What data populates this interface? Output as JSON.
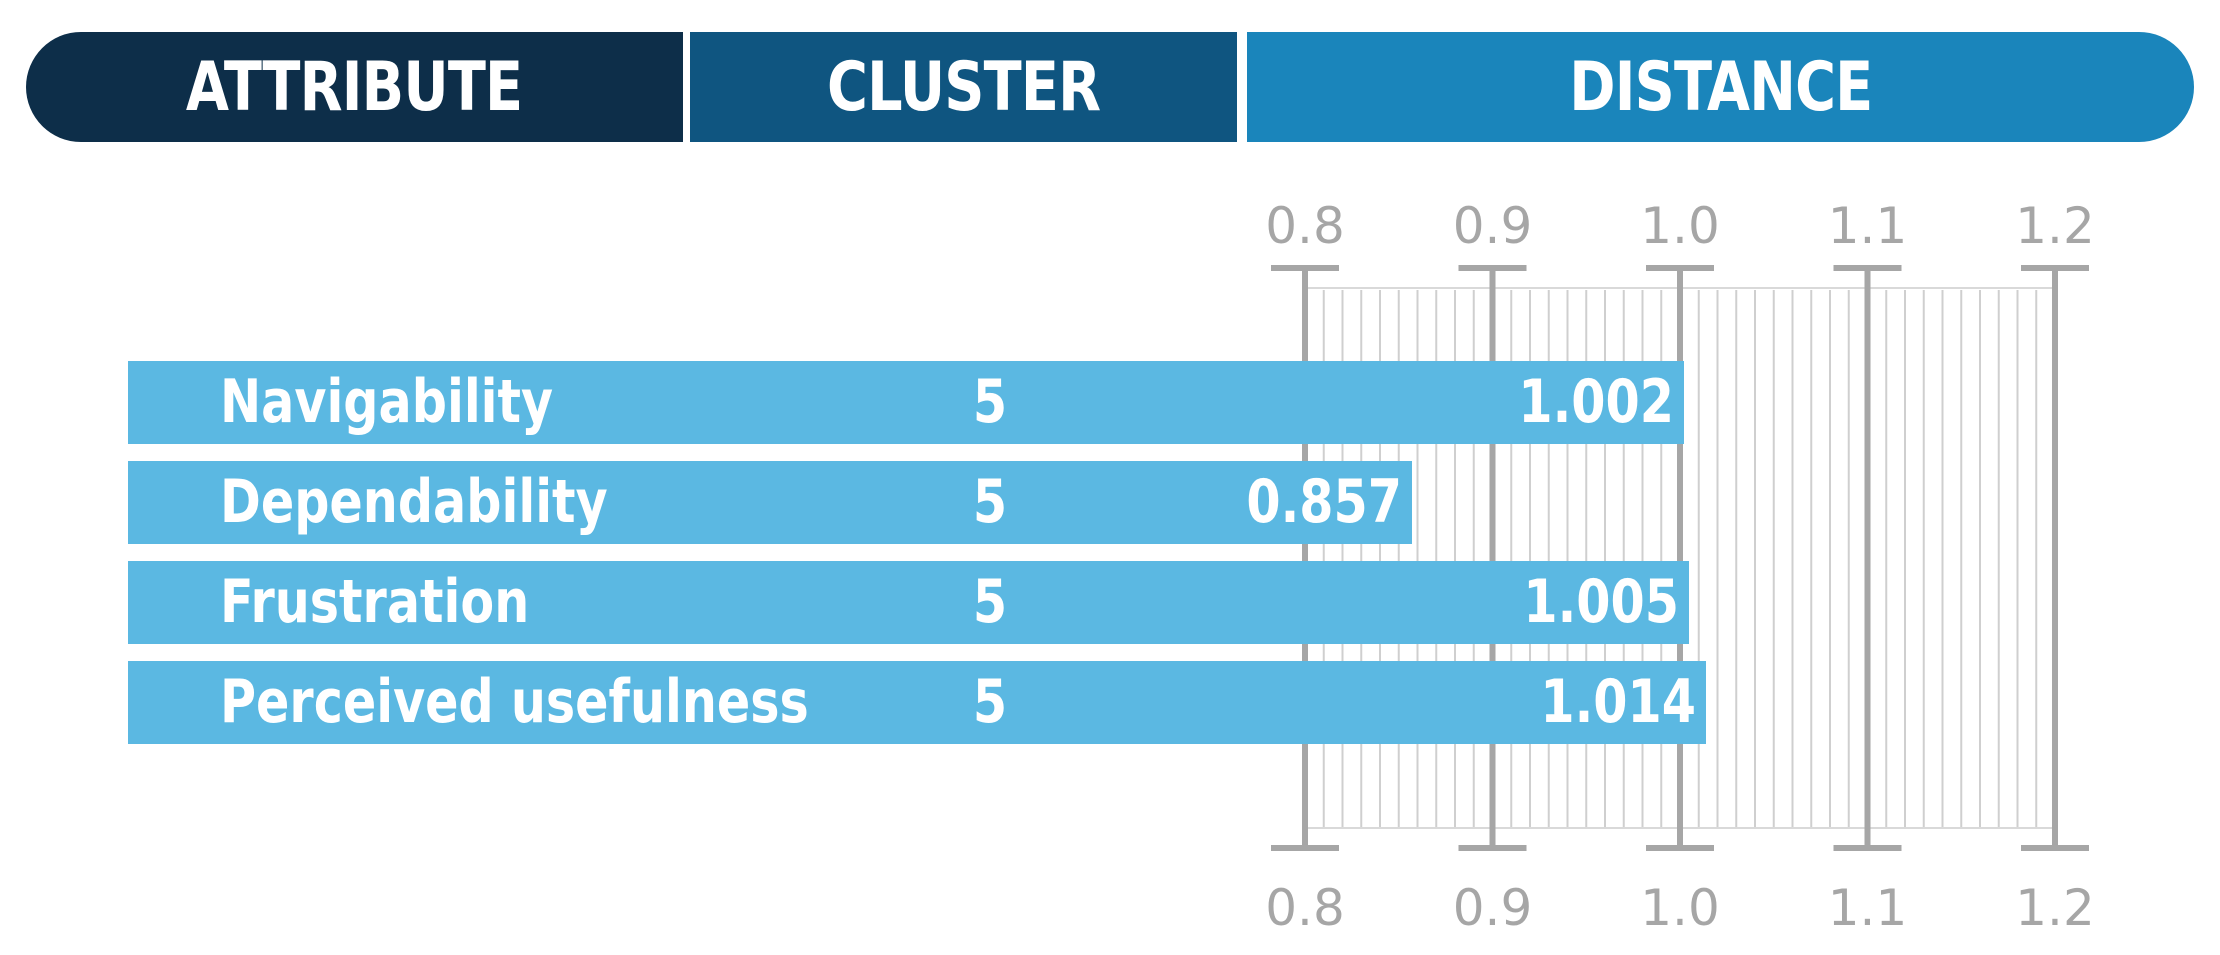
{
  "header": {
    "attribute_label": "ATTRIBUTE",
    "cluster_label": "CLUSTER",
    "distance_label": "DISTANCE"
  },
  "colors": {
    "attribute_header": "#0d2e49",
    "cluster_header": "#0f5580",
    "distance_header": "#1a85bb",
    "bar": "#5bb8e2",
    "scale": "#a6a6a6"
  },
  "chart_data": {
    "type": "bar",
    "orientation": "horizontal",
    "categories": [
      "Navigability",
      "Dependability",
      "Frustration",
      "Perceived usefulness"
    ],
    "cluster": [
      "5",
      "5",
      "5",
      "5"
    ],
    "values": [
      1.002,
      0.857,
      1.005,
      1.014
    ],
    "value_labels": [
      "1.002",
      "0.857",
      "1.005",
      "1.014"
    ],
    "xlim": [
      0.8,
      1.2
    ],
    "xticks": [
      "0.8",
      "0.9",
      "1.0",
      "1.1",
      "1.2"
    ],
    "title": "",
    "xlabel": "",
    "ylabel": ""
  }
}
